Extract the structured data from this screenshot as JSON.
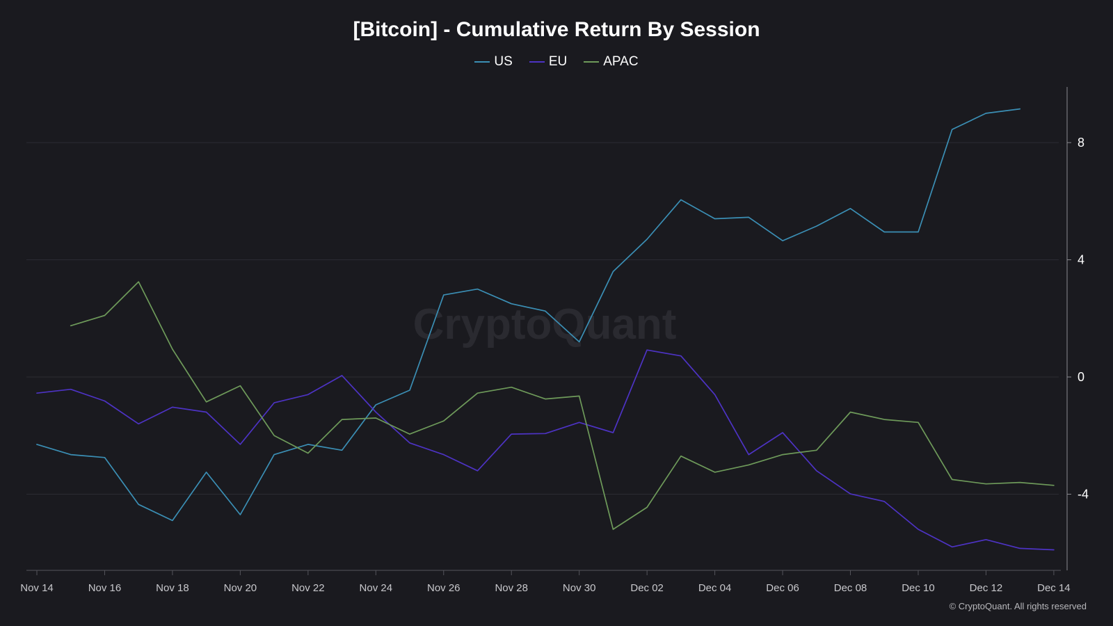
{
  "chart_data": {
    "type": "line",
    "title": "[Bitcoin] - Cumulative Return By Session",
    "watermark": "CryptoQuant",
    "copyright": "© CryptoQuant. All rights reserved",
    "legend_position": "top-center",
    "grid": true,
    "x_tick_labels": [
      "Nov 14",
      "Nov 16",
      "Nov 18",
      "Nov 20",
      "Nov 22",
      "Nov 24",
      "Nov 26",
      "Nov 28",
      "Nov 30",
      "Dec 02",
      "Dec 04",
      "Dec 06",
      "Dec 08",
      "Dec 10",
      "Dec 12",
      "Dec 14"
    ],
    "x": [
      "Nov 14",
      "Nov 15",
      "Nov 16",
      "Nov 17",
      "Nov 18",
      "Nov 19",
      "Nov 20",
      "Nov 21",
      "Nov 22",
      "Nov 23",
      "Nov 24",
      "Nov 25",
      "Nov 26",
      "Nov 27",
      "Nov 28",
      "Nov 29",
      "Nov 30",
      "Dec 01",
      "Dec 02",
      "Dec 03",
      "Dec 04",
      "Dec 05",
      "Dec 06",
      "Dec 07",
      "Dec 08",
      "Dec 09",
      "Dec 10",
      "Dec 11",
      "Dec 12",
      "Dec 13",
      "Dec 14"
    ],
    "y_ticks": [
      -4,
      0,
      4,
      8
    ],
    "ylim": [
      -6.6,
      9.9
    ],
    "series": [
      {
        "name": "US",
        "color": "#3b8fb5",
        "values": [
          -2.3,
          -2.65,
          -2.75,
          -4.35,
          -4.9,
          -3.25,
          -4.7,
          -2.65,
          -2.3,
          -2.5,
          -0.95,
          -0.45,
          2.8,
          3.0,
          2.5,
          2.25,
          1.2,
          3.6,
          4.7,
          6.05,
          5.4,
          5.45,
          4.65,
          5.15,
          5.75,
          4.95,
          4.95,
          8.45,
          9.0,
          9.15,
          null
        ]
      },
      {
        "name": "EU",
        "color": "#4d33c4",
        "values": [
          -0.55,
          -0.42,
          -0.82,
          -1.6,
          -1.03,
          -1.2,
          -2.3,
          -0.88,
          -0.6,
          0.05,
          -1.2,
          -2.25,
          -2.65,
          -3.2,
          -1.95,
          -1.93,
          -1.55,
          -1.9,
          0.92,
          0.72,
          -0.6,
          -2.65,
          -1.9,
          -3.2,
          -3.99,
          -4.25,
          -5.2,
          -5.8,
          -5.55,
          -5.85,
          -5.9
        ]
      },
      {
        "name": "APAC",
        "color": "#6e9a5a",
        "values": [
          null,
          1.75,
          2.1,
          3.25,
          0.95,
          -0.85,
          -0.3,
          -2.0,
          -2.6,
          -1.45,
          -1.4,
          -1.95,
          -1.5,
          -0.55,
          -0.35,
          -0.75,
          -0.65,
          -5.2,
          -4.45,
          -2.7,
          -3.25,
          -3.0,
          -2.65,
          -2.5,
          -1.2,
          -1.45,
          -1.55,
          -3.5,
          -3.65,
          -3.6,
          -3.7
        ]
      }
    ]
  }
}
